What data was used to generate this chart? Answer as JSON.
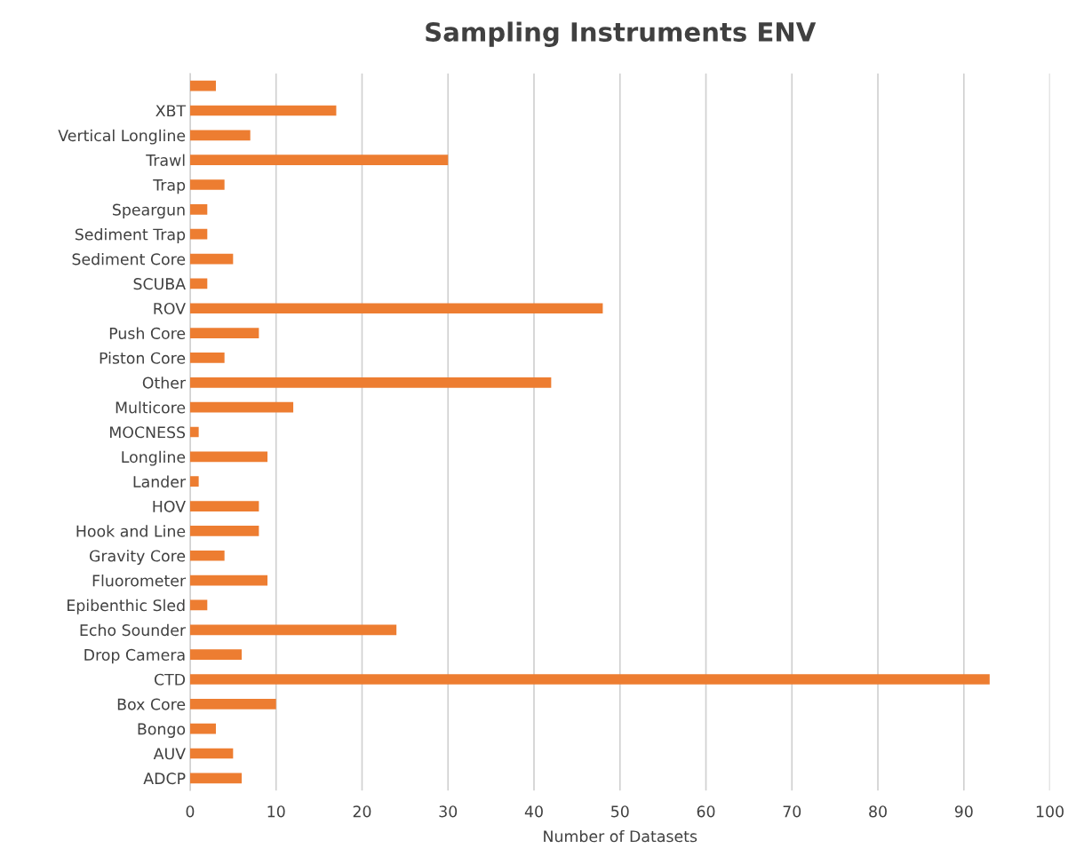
{
  "chart_data": {
    "type": "bar",
    "orientation": "horizontal",
    "title": "Sampling Instruments ENV",
    "xlabel": "Number of Datasets",
    "categories": [
      null,
      "XBT",
      "Vertical Longline",
      "Trawl",
      "Trap",
      "Speargun",
      "Sediment Trap",
      "Sediment Core",
      "SCUBA",
      "ROV",
      "Push Core",
      "Piston Core",
      "Other",
      "Multicore",
      "MOCNESS",
      "Longline",
      "Lander",
      "HOV",
      "Hook and Line",
      "Gravity Core",
      "Fluorometer",
      "Epibenthic Sled",
      "Echo Sounder",
      "Drop Camera",
      "CTD",
      "Box Core",
      "Bongo",
      "AUV",
      "ADCP"
    ],
    "values": [
      3,
      17,
      7,
      30,
      4,
      2,
      2,
      5,
      2,
      48,
      8,
      4,
      42,
      12,
      1,
      9,
      1,
      8,
      8,
      4,
      9,
      2,
      24,
      6,
      93,
      10,
      3,
      5,
      6
    ],
    "color": "#ed7d31",
    "xlim": [
      0,
      100
    ],
    "xticks": [
      0,
      10,
      20,
      30,
      40,
      50,
      60,
      70,
      80,
      90,
      100
    ],
    "grid": "x",
    "legend": false
  }
}
